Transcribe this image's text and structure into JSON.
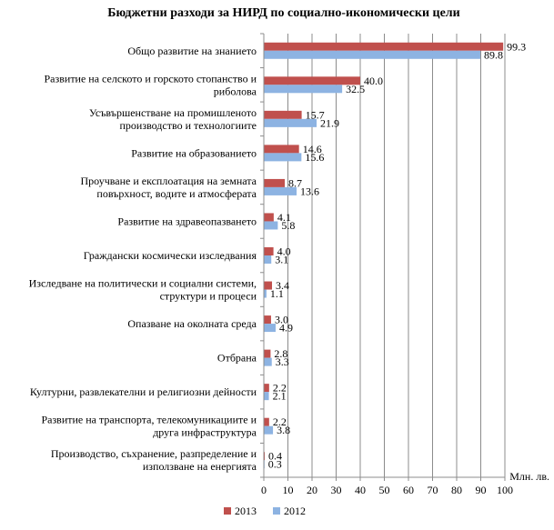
{
  "chart_data": {
    "type": "bar",
    "orientation": "horizontal",
    "title": "Бюджетни разходи за НИРД по социално-икономически цели",
    "xlabel": "Млн. лв.",
    "xlim": [
      0,
      100
    ],
    "xticks": [
      "0",
      "10",
      "20",
      "30",
      "40",
      "50",
      "60",
      "70",
      "80",
      "90",
      "100"
    ],
    "grid": "vertical",
    "legend_position": "bottom",
    "categories": [
      [
        "Общо развитие на знанието"
      ],
      [
        "Развитие на селското и горското стопанство и",
        "риболова"
      ],
      [
        "Усъвършенстване на промишленото",
        "производство и технологиите"
      ],
      [
        "Развитие на образованието"
      ],
      [
        "Проучване и експлоатация на земната",
        "повърхност, водите и атмосферата"
      ],
      [
        "Развитие на здравеопазването"
      ],
      [
        "Граждански космически изследвания"
      ],
      [
        "Изследване на политически и социални системи,",
        "структури  и процеси"
      ],
      [
        "Опазване на околната среда"
      ],
      [
        "Отбрана"
      ],
      [
        "Културни,  развлекателни и религиозни дейности"
      ],
      [
        "Развитие на транспорта, телекомуникациите  и",
        "друга инфраструктура"
      ],
      [
        "Производство, съхранение, разпределение и",
        "използване на енергията"
      ]
    ],
    "series": [
      {
        "name": "2013",
        "color": "#c0504d",
        "values": [
          99.3,
          40.0,
          15.7,
          14.6,
          8.7,
          4.1,
          4.0,
          3.4,
          3.0,
          2.8,
          2.2,
          2.2,
          0.4
        ],
        "labels": [
          "99.3",
          "40.0",
          "15.7",
          "14.6",
          "8.7",
          "4.1",
          "4.0",
          "3.4",
          "3.0",
          "2.8",
          "2.2",
          "2.2",
          "0.4"
        ]
      },
      {
        "name": "2012",
        "color": "#8db3e2",
        "values": [
          89.8,
          32.5,
          21.9,
          15.6,
          13.6,
          5.8,
          3.1,
          1.1,
          4.9,
          3.3,
          2.1,
          3.8,
          0.3
        ],
        "labels": [
          "89.8",
          "32.5",
          "21.9",
          "15.6",
          "13.6",
          "5.8",
          "3.1",
          "1.1",
          "4.9",
          "3.3",
          "2.1",
          "3.8",
          "0.3"
        ]
      }
    ]
  }
}
